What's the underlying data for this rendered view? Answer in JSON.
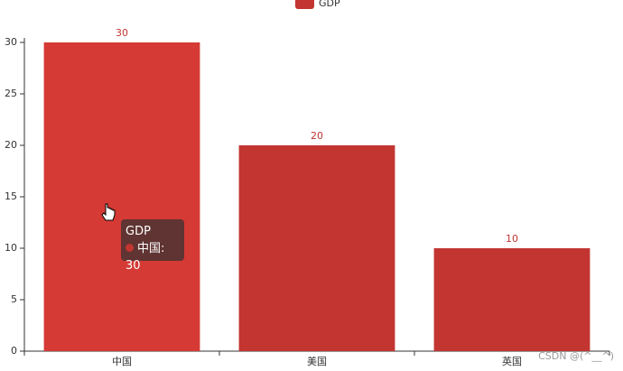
{
  "chart_data": {
    "type": "bar",
    "categories": [
      "中国",
      "美国",
      "英国"
    ],
    "series": [
      {
        "name": "GDP",
        "color": "#c23531",
        "values": [
          30,
          20,
          10
        ]
      }
    ],
    "ylim": [
      0,
      30
    ],
    "yticks": [
      0,
      5,
      10,
      15,
      20,
      25,
      30
    ],
    "legend": "top",
    "hover": {
      "index": 0,
      "color": "#d53a35"
    }
  },
  "watermark": "CSDN @(^__^)"
}
